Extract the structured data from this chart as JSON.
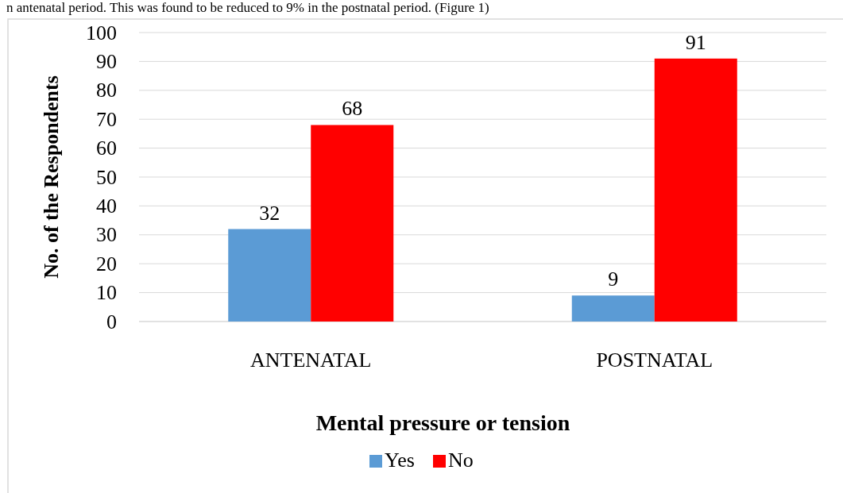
{
  "chart_data": {
    "type": "bar",
    "xlabel": "Mental pressure or tension",
    "ylabel": "No. of the Respondents",
    "categories": [
      "ANTENATAL",
      "POSTNATAL"
    ],
    "series": [
      {
        "name": "Yes",
        "color": "#5b9bd5",
        "values": [
          32,
          9
        ]
      },
      {
        "name": "No",
        "color": "#ff0000",
        "values": [
          68,
          91
        ]
      }
    ],
    "ylim": [
      0,
      100
    ],
    "yticks": [
      0,
      10,
      20,
      30,
      40,
      50,
      60,
      70,
      80,
      90,
      100
    ],
    "grid": "y",
    "legend": "bottom",
    "data_labels": true,
    "annotations": [
      "n antenatal period. This was found to be reduced to 9% in the postnatal period. (Figure 1)"
    ]
  }
}
